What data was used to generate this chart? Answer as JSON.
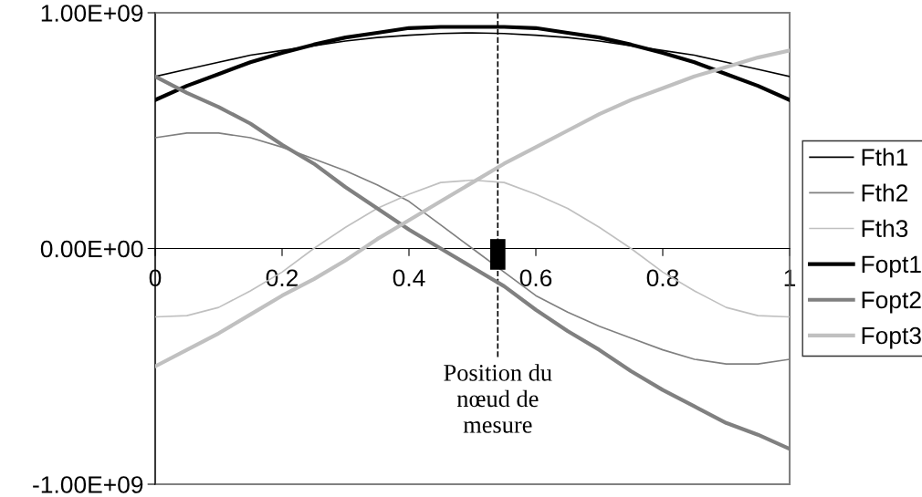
{
  "chart_data": {
    "type": "line",
    "x": [
      0,
      0.05,
      0.1,
      0.15,
      0.2,
      0.25,
      0.3,
      0.35,
      0.4,
      0.45,
      0.5,
      0.55,
      0.6,
      0.65,
      0.7,
      0.75,
      0.8,
      0.85,
      0.9,
      0.95,
      1
    ],
    "series": [
      {
        "name": "Fth1",
        "color": "#000000",
        "values": [
          730000000.0,
          760000000.0,
          790000000.0,
          820000000.0,
          840000000.0,
          860000000.0,
          880000000.0,
          895000000.0,
          905000000.0,
          912000000.0,
          915000000.0,
          912000000.0,
          905000000.0,
          895000000.0,
          880000000.0,
          860000000.0,
          840000000.0,
          820000000.0,
          790000000.0,
          760000000.0,
          730000000.0
        ]
      },
      {
        "name": "Fth2",
        "color": "#808080",
        "values": [
          470000000.0,
          490000000.0,
          490000000.0,
          470000000.0,
          430000000.0,
          380000000.0,
          330000000.0,
          270000000.0,
          200000000.0,
          100000000.0,
          0,
          -100000000.0,
          -200000000.0,
          -270000000.0,
          -330000000.0,
          -380000000.0,
          -430000000.0,
          -470000000.0,
          -490000000.0,
          -490000000.0,
          -470000000.0
        ]
      },
      {
        "name": "Fth3",
        "color": "#c0c0c0",
        "values": [
          -290000000.0,
          -285000000.0,
          -250000000.0,
          -180000000.0,
          -100000000.0,
          0,
          90000000.0,
          170000000.0,
          230000000.0,
          280000000.0,
          290000000.0,
          280000000.0,
          230000000.0,
          170000000.0,
          90000000.0,
          0,
          -100000000.0,
          -180000000.0,
          -250000000.0,
          -285000000.0,
          -290000000.0
        ]
      },
      {
        "name": "Fopt1",
        "color": "#000000",
        "values": [
          630000000.0,
          690000000.0,
          740000000.0,
          790000000.0,
          830000000.0,
          865000000.0,
          895000000.0,
          915000000.0,
          935000000.0,
          940000000.0,
          940000000.0,
          940000000.0,
          935000000.0,
          915000000.0,
          895000000.0,
          865000000.0,
          830000000.0,
          790000000.0,
          740000000.0,
          690000000.0,
          630000000.0
        ]
      },
      {
        "name": "Fopt2",
        "color": "#808080",
        "values": [
          730000000.0,
          660000000.0,
          600000000.0,
          530000000.0,
          440000000.0,
          360000000.0,
          260000000.0,
          170000000.0,
          80000000.0,
          0,
          -80000000.0,
          -160000000.0,
          -260000000.0,
          -350000000.0,
          -430000000.0,
          -520000000.0,
          -600000000.0,
          -670000000.0,
          -740000000.0,
          -790000000.0,
          -850000000.0
        ]
      },
      {
        "name": "Fopt3",
        "color": "#c0c0c0",
        "values": [
          -500000000.0,
          -430000000.0,
          -360000000.0,
          -280000000.0,
          -200000000.0,
          -130000000.0,
          -50000000.0,
          40000000.0,
          120000000.0,
          200000000.0,
          280000000.0,
          360000000.0,
          430000000.0,
          500000000.0,
          570000000.0,
          630000000.0,
          680000000.0,
          730000000.0,
          770000000.0,
          810000000.0,
          840000000.0
        ]
      }
    ],
    "xlim": [
      0,
      1
    ],
    "xticks": [
      0,
      0.2,
      0.4,
      0.6,
      0.8,
      1
    ],
    "ylim": [
      -1000000000.0,
      1000000000.0
    ],
    "yticks": [
      {
        "value": -1000000000.0,
        "label": "-1.00E+09"
      },
      {
        "value": 0,
        "label": "0.00E+00"
      },
      {
        "value": 1000000000.0,
        "label": "1.00E+09"
      }
    ],
    "ref_lines": [
      {
        "axis": "x",
        "value": 0.54,
        "label": "Position du\nnœud de\nmesure",
        "color": "#000000",
        "line_style": "dashed"
      }
    ],
    "legend": "right",
    "grid": false,
    "marker": "none",
    "line_style": "solid"
  }
}
